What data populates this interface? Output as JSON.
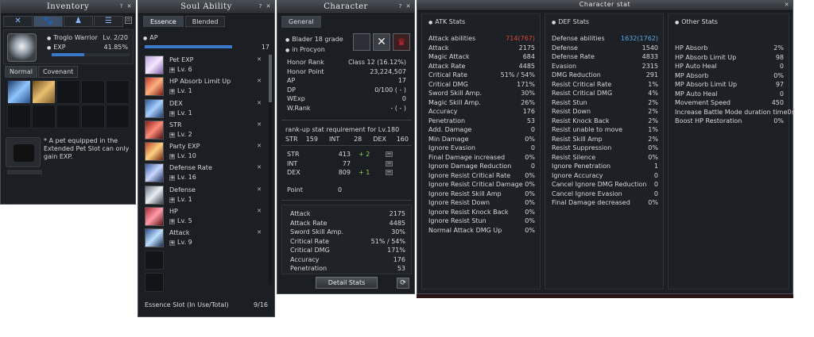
{
  "inventory": {
    "title": "Inventory",
    "pet": {
      "name": "Troglo Warrior",
      "level": "Lv.  2/20",
      "exp_label": "EXP",
      "exp_value": "41.85%",
      "exp_fraction": 0.4185
    },
    "tabs": [
      "Normal",
      "Covenant"
    ],
    "ext_slot_text": "* A pet equipped in the Extended Pet Slot can only gain EXP."
  },
  "soul": {
    "title": "Soul Ability",
    "tabs": [
      "Essence",
      "Blended"
    ],
    "ap_label": "AP",
    "ap_value": "17",
    "items": [
      {
        "name": "Pet EXP",
        "level": "Lv. 6"
      },
      {
        "name": "HP Absorb Limit Up",
        "level": "Lv. 1"
      },
      {
        "name": "DEX",
        "level": "Lv. 1"
      },
      {
        "name": "STR",
        "level": "Lv. 2"
      },
      {
        "name": "Party EXP",
        "level": "Lv. 10"
      },
      {
        "name": "Defense Rate",
        "level": "Lv. 16"
      },
      {
        "name": "Defense",
        "level": "Lv. 1"
      },
      {
        "name": "HP",
        "level": "Lv. 5"
      },
      {
        "name": "Attack",
        "level": "Lv. 9"
      }
    ],
    "slot_label": "Essence Slot (In Use/Total)",
    "slot_value": "9/16"
  },
  "character": {
    "title": "Character",
    "tab": "General",
    "grade": "Blader 18 grade",
    "location": "in Procyon",
    "rows": [
      {
        "k": "Honor Rank",
        "v": "Class 12 (16.12%)"
      },
      {
        "k": "Honor Point",
        "v": "23,224,507"
      },
      {
        "k": "AP",
        "v": "17"
      },
      {
        "k": "DP",
        "v": "0/100 ( - )"
      },
      {
        "k": "WExp",
        "v": "0"
      },
      {
        "k": "W.Rank",
        "v": "-   (   -   )"
      }
    ],
    "req_title": "rank-up stat requirement for Lv.180",
    "req": {
      "str_label": "STR",
      "str": "159",
      "int_label": "INT",
      "int": "28",
      "dex_label": "DEX",
      "dex": "160"
    },
    "up": [
      {
        "k": "STR",
        "v": "413",
        "d": "+ 2",
        "btn": "−"
      },
      {
        "k": "INT",
        "v": "77",
        "d": "",
        "btn": "−"
      },
      {
        "k": "DEX",
        "v": "809",
        "d": "+ 1",
        "btn": "−"
      }
    ],
    "point_label": "Point",
    "point_value": "0",
    "summary": [
      {
        "k": "Attack",
        "v": "2175"
      },
      {
        "k": "Attack Rate",
        "v": "4485"
      },
      {
        "k": "Sword Skill Amp.",
        "v": "30%"
      },
      {
        "k": "Critical Rate",
        "v": "51% / 54%"
      },
      {
        "k": "Critical DMG",
        "v": "171%"
      },
      {
        "k": "Accuracy",
        "v": "176"
      },
      {
        "k": "Penetration",
        "v": "53"
      }
    ],
    "detail_button": "Detail Stats"
  },
  "stat": {
    "title": "Character stat",
    "atk_head": "ATK Stats",
    "def_head": "DEF Stats",
    "other_head": "Other Stats",
    "atk_first": {
      "k": "Attack abilities",
      "v": "714(767)"
    },
    "atk": [
      {
        "k": "Attack",
        "v": "2175"
      },
      {
        "k": "Magic Attack",
        "v": "684"
      },
      {
        "k": "Attack Rate",
        "v": "4485"
      },
      {
        "k": "Critical Rate",
        "v": "51% / 54%"
      },
      {
        "k": "Critical DMG",
        "v": "171%"
      },
      {
        "k": "Sword Skill Amp.",
        "v": "30%"
      },
      {
        "k": "Magic Skill Amp.",
        "v": "26%"
      },
      {
        "k": "Accuracy",
        "v": "176"
      },
      {
        "k": "Penetration",
        "v": "53"
      },
      {
        "k": "Add. Damage",
        "v": "0"
      },
      {
        "k": "Min Damage",
        "v": "0%"
      },
      {
        "k": "Ignore Evasion",
        "v": "0"
      },
      {
        "k": "Final Damage increased",
        "v": "0%"
      },
      {
        "k": "Ignore Damage Reduction",
        "v": "0"
      },
      {
        "k": "Ignore Resist Critical Rate",
        "v": "0%"
      },
      {
        "k": "Ignore Resist Critical Damage",
        "v": "0%"
      },
      {
        "k": "Ignore Resist Skill Amp",
        "v": "0%"
      },
      {
        "k": "Ignore Resist Down",
        "v": "0%"
      },
      {
        "k": "Ignore Resist Knock Back",
        "v": "0%"
      },
      {
        "k": "Ignore Resist Stun",
        "v": "0%"
      },
      {
        "k": "Normal Attack DMG Up",
        "v": "0%"
      }
    ],
    "def_first": {
      "k": "Defense abilities",
      "v": "1632(1762)"
    },
    "def": [
      {
        "k": "Defense",
        "v": "1540"
      },
      {
        "k": "Defense Rate",
        "v": "4833"
      },
      {
        "k": "Evasion",
        "v": "2315"
      },
      {
        "k": "DMG Reduction",
        "v": "291"
      },
      {
        "k": "Resist Critical Rate",
        "v": "1%"
      },
      {
        "k": "Resist Critical DMG",
        "v": "4%"
      },
      {
        "k": "Resist Stun",
        "v": "2%"
      },
      {
        "k": "Resist Down",
        "v": "2%"
      },
      {
        "k": "Resist Knock Back",
        "v": "2%"
      },
      {
        "k": "Resist unable to move",
        "v": "1%"
      },
      {
        "k": "Resist Skill Amp",
        "v": "2%"
      },
      {
        "k": "Resist Suppression",
        "v": "0%"
      },
      {
        "k": "Resist Silence",
        "v": "0%"
      },
      {
        "k": "Ignore Penetration",
        "v": "1"
      },
      {
        "k": "Ignore Accuracy",
        "v": "0"
      },
      {
        "k": "Cancel Ignore DMG Reduction",
        "v": "0"
      },
      {
        "k": "Cancel Ignore Evasion",
        "v": "0"
      },
      {
        "k": "Final Damage decreased",
        "v": "0%"
      }
    ],
    "other": [
      {
        "k": "HP Absorb",
        "v": "2%"
      },
      {
        "k": "HP Absorb Limit Up",
        "v": "98"
      },
      {
        "k": "HP Auto Heal",
        "v": "0"
      },
      {
        "k": "MP Absorb",
        "v": "0%"
      },
      {
        "k": "MP Absorb Limit Up",
        "v": "97"
      },
      {
        "k": "MP Auto Heal",
        "v": "0"
      },
      {
        "k": "Movement Speed",
        "v": "450"
      },
      {
        "k": "Increase Battle Mode duration time",
        "v": "0s"
      },
      {
        "k": "Boost HP Restoration",
        "v": "0%"
      }
    ]
  },
  "colors": {
    "accent_red": "#e0453a",
    "accent_blue": "#5aa8e8",
    "bonus_green": "#8fd45a",
    "bar_blue": "#3a78c8"
  }
}
